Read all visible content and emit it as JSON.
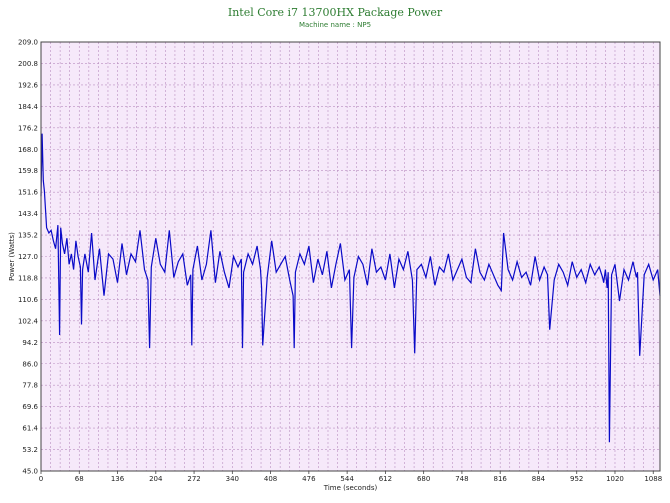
{
  "chart_data": {
    "type": "line",
    "title": "Intel Core i7 13700HX Package Power",
    "subtitle": "Machine name : NP5",
    "xlabel": "Time (seconds)",
    "ylabel": "Power (Watts)",
    "xlim": [
      0,
      1100
    ],
    "ylim": [
      45.0,
      209.0
    ],
    "xticks": [
      "0",
      "68",
      "136",
      "204",
      "272",
      "340",
      "408",
      "476",
      "544",
      "612",
      "680",
      "748",
      "816",
      "884",
      "952",
      "1020",
      "1088"
    ],
    "yticks": [
      "45.0",
      "53.2",
      "61.4",
      "69.6",
      "77.8",
      "86.0",
      "94.2",
      "102.4",
      "110.6",
      "118.8",
      "127.0",
      "135.2",
      "143.4",
      "151.6",
      "159.8",
      "168.0",
      "176.2",
      "184.4",
      "192.6",
      "200.8",
      "209.0"
    ],
    "grid": true,
    "background": "#f6e9fa",
    "grid_color": "#b98fc0",
    "line_color": "#0a0ac8",
    "title_color": "#2e7d32",
    "series": [
      {
        "x": [
          0,
          2,
          4,
          6,
          8,
          10,
          14,
          18,
          22,
          26,
          30,
          33,
          35,
          38,
          42,
          46,
          50,
          54,
          58,
          62,
          66,
          70,
          72,
          74,
          78,
          84,
          90,
          96,
          104,
          112,
          120,
          128,
          136,
          144,
          152,
          160,
          168,
          176,
          184,
          190,
          193,
          196,
          204,
          212,
          220,
          228,
          236,
          244,
          252,
          260,
          266,
          268,
          270,
          278,
          286,
          294,
          302,
          310,
          318,
          326,
          334,
          342,
          350,
          356,
          358,
          360,
          368,
          376,
          384,
          390,
          392,
          394,
          402,
          410,
          418,
          426,
          434,
          442,
          448,
          450,
          452,
          460,
          468,
          476,
          484,
          492,
          500,
          508,
          516,
          524,
          532,
          540,
          548,
          552,
          556,
          564,
          572,
          580,
          588,
          596,
          604,
          612,
          620,
          628,
          636,
          644,
          652,
          660,
          664,
          668,
          676,
          684,
          692,
          700,
          708,
          716,
          724,
          732,
          740,
          748,
          756,
          764,
          772,
          780,
          788,
          796,
          804,
          812,
          818,
          822,
          830,
          838,
          846,
          854,
          862,
          870,
          878,
          886,
          894,
          900,
          904,
          912,
          920,
          928,
          936,
          944,
          952,
          960,
          968,
          976,
          984,
          992,
          998,
          1000,
          1003,
          1006,
          1008,
          1010,
          1014,
          1020,
          1028,
          1036,
          1044,
          1052,
          1058,
          1060,
          1064,
          1072,
          1080,
          1088,
          1096,
          1100
        ],
        "y": [
          150,
          174,
          156,
          152,
          145,
          138,
          136,
          137,
          133,
          130,
          139,
          97,
          138,
          132,
          128,
          134,
          124,
          128,
          122,
          133,
          127,
          123,
          101,
          122,
          128,
          121,
          136,
          118,
          130,
          112,
          128,
          126,
          117,
          132,
          120,
          128,
          125,
          137,
          122,
          118,
          92,
          123,
          134,
          124,
          121,
          137,
          119,
          125,
          128,
          116,
          120,
          93,
          122,
          131,
          118,
          124,
          137,
          117,
          129,
          121,
          115,
          127,
          123,
          126,
          92,
          121,
          128,
          124,
          131,
          122,
          115,
          93,
          119,
          133,
          121,
          124,
          127,
          118,
          112,
          92,
          121,
          128,
          124,
          131,
          117,
          126,
          120,
          129,
          115,
          124,
          132,
          118,
          122,
          92,
          119,
          127,
          124,
          116,
          130,
          121,
          123,
          118,
          128,
          115,
          126,
          122,
          129,
          118,
          90,
          122,
          124,
          119,
          127,
          116,
          123,
          121,
          128,
          118,
          122,
          126,
          119,
          117,
          130,
          121,
          118,
          124,
          120,
          116,
          114,
          136,
          122,
          118,
          125,
          119,
          121,
          116,
          127,
          118,
          123,
          120,
          99,
          118,
          124,
          121,
          116,
          125,
          119,
          122,
          117,
          124,
          120,
          123,
          119,
          117,
          122,
          115,
          121,
          56,
          120,
          124,
          110,
          122,
          118,
          125,
          119,
          121,
          89,
          120,
          124,
          118,
          122,
          112
        ]
      }
    ]
  }
}
